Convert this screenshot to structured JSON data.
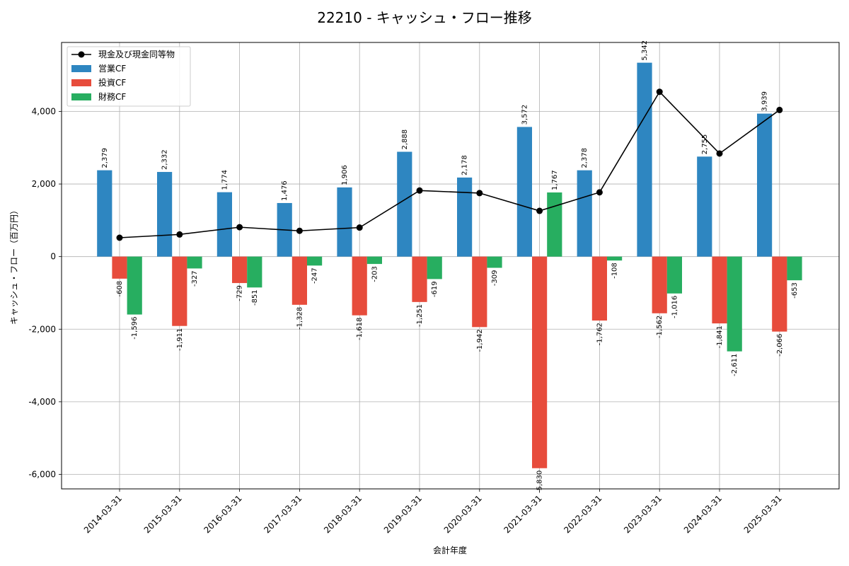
{
  "chart_data": {
    "type": "bar",
    "title": "22210 - キャッシュ・フロー推移",
    "xlabel": "会計年度",
    "ylabel": "キャッシュ・フロー（百万円）",
    "categories": [
      "2014-03-31",
      "2015-03-31",
      "2016-03-31",
      "2017-03-31",
      "2018-03-31",
      "2019-03-31",
      "2020-03-31",
      "2021-03-31",
      "2022-03-31",
      "2023-03-31",
      "2024-03-31",
      "2025-03-31"
    ],
    "ylim": [
      -6400,
      5900
    ],
    "yticks": [
      -6000,
      -4000,
      -2000,
      0,
      2000,
      4000
    ],
    "ytick_labels": [
      "-6,000",
      "-4,000",
      "-2,000",
      "0",
      "2,000",
      "4,000"
    ],
    "grid": true,
    "legend_position": "top-left",
    "series": [
      {
        "name": "営業CF",
        "kind": "bar",
        "color": "#2e86c1",
        "values": [
          2379,
          2332,
          1774,
          1476,
          1906,
          2888,
          2178,
          3572,
          2378,
          5342,
          2755,
          3939
        ],
        "labels": [
          "2,379",
          "2,332",
          "1,774",
          "1,476",
          "1,906",
          "2,888",
          "2,178",
          "3,572",
          "2,378",
          "5,342",
          "2,755",
          "3,939"
        ]
      },
      {
        "name": "投資CF",
        "kind": "bar",
        "color": "#e74c3c",
        "values": [
          -608,
          -1911,
          -729,
          -1328,
          -1618,
          -1251,
          -1942,
          -5830,
          -1762,
          -1562,
          -1841,
          -2066
        ],
        "labels": [
          "-608",
          "-1,911",
          "-729",
          "-1,328",
          "-1,618",
          "-1,251",
          "-1,942",
          "-5,830",
          "-1,762",
          "-1,562",
          "-1,841",
          "-2,066"
        ]
      },
      {
        "name": "財務CF",
        "kind": "bar",
        "color": "#27ae60",
        "values": [
          -1596,
          -327,
          -851,
          -247,
          -203,
          -619,
          -309,
          1767,
          -108,
          -1016,
          -2611,
          -653
        ],
        "labels": [
          "-1,596",
          "-327",
          "-851",
          "-247",
          "-203",
          "-619",
          "-309",
          "1,767",
          "-108",
          "-1,016",
          "-2,611",
          "-653"
        ]
      },
      {
        "name": "現金及び現金同等物",
        "kind": "line",
        "color": "#000000",
        "values": [
          520,
          610,
          810,
          710,
          800,
          1820,
          1750,
          1260,
          1770,
          4540,
          2840,
          4040
        ]
      }
    ]
  }
}
